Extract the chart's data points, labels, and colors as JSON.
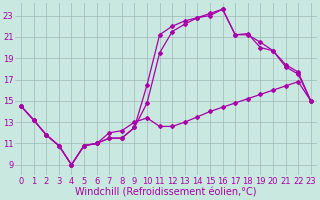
{
  "background_color": "#c8e8e0",
  "line_color": "#aa00aa",
  "grid_color": "#a0b8b8",
  "xlabel": "Windchill (Refroidissement éolien,°C)",
  "xlabel_fontsize": 7,
  "tick_fontsize": 6,
  "xlim": [
    -0.5,
    23.5
  ],
  "ylim": [
    8,
    24.2
  ],
  "yticks": [
    9,
    11,
    13,
    15,
    17,
    19,
    21,
    23
  ],
  "xticks": [
    0,
    1,
    2,
    3,
    4,
    5,
    6,
    7,
    8,
    9,
    10,
    11,
    12,
    13,
    14,
    15,
    16,
    17,
    18,
    19,
    20,
    21,
    22,
    23
  ],
  "line1_x": [
    0,
    1,
    2,
    3,
    4,
    5,
    6,
    7,
    8,
    9,
    10,
    11,
    12,
    13,
    14,
    15,
    16,
    17,
    18,
    19,
    20,
    21,
    22,
    23
  ],
  "line1_y": [
    14.5,
    13.2,
    11.8,
    10.8,
    9.0,
    10.8,
    11.0,
    12.0,
    12.2,
    13.0,
    13.4,
    12.6,
    12.6,
    13.0,
    13.5,
    14.0,
    14.4,
    14.8,
    15.2,
    15.6,
    16.0,
    16.4,
    16.8,
    15.0
  ],
  "line2_x": [
    0,
    1,
    2,
    3,
    4,
    5,
    6,
    7,
    8,
    9,
    10,
    11,
    12,
    13,
    14,
    15,
    16,
    17,
    18,
    19,
    20,
    21,
    22,
    23
  ],
  "line2_y": [
    14.5,
    13.2,
    11.8,
    10.8,
    9.0,
    10.8,
    11.0,
    11.5,
    11.5,
    12.5,
    16.5,
    21.2,
    22.0,
    22.5,
    22.8,
    23.2,
    23.6,
    21.2,
    21.3,
    20.0,
    19.7,
    18.2,
    17.5,
    15.0
  ],
  "line3_x": [
    0,
    1,
    2,
    3,
    4,
    5,
    6,
    7,
    8,
    9,
    10,
    11,
    12,
    13,
    14,
    15,
    16,
    17,
    18,
    19,
    20,
    21,
    22,
    23
  ],
  "line3_y": [
    14.5,
    13.2,
    11.8,
    10.8,
    9.0,
    10.8,
    11.0,
    11.5,
    11.5,
    12.5,
    14.8,
    19.5,
    21.5,
    22.2,
    22.8,
    23.0,
    23.6,
    21.2,
    21.2,
    20.5,
    19.7,
    18.4,
    17.7,
    15.0
  ]
}
